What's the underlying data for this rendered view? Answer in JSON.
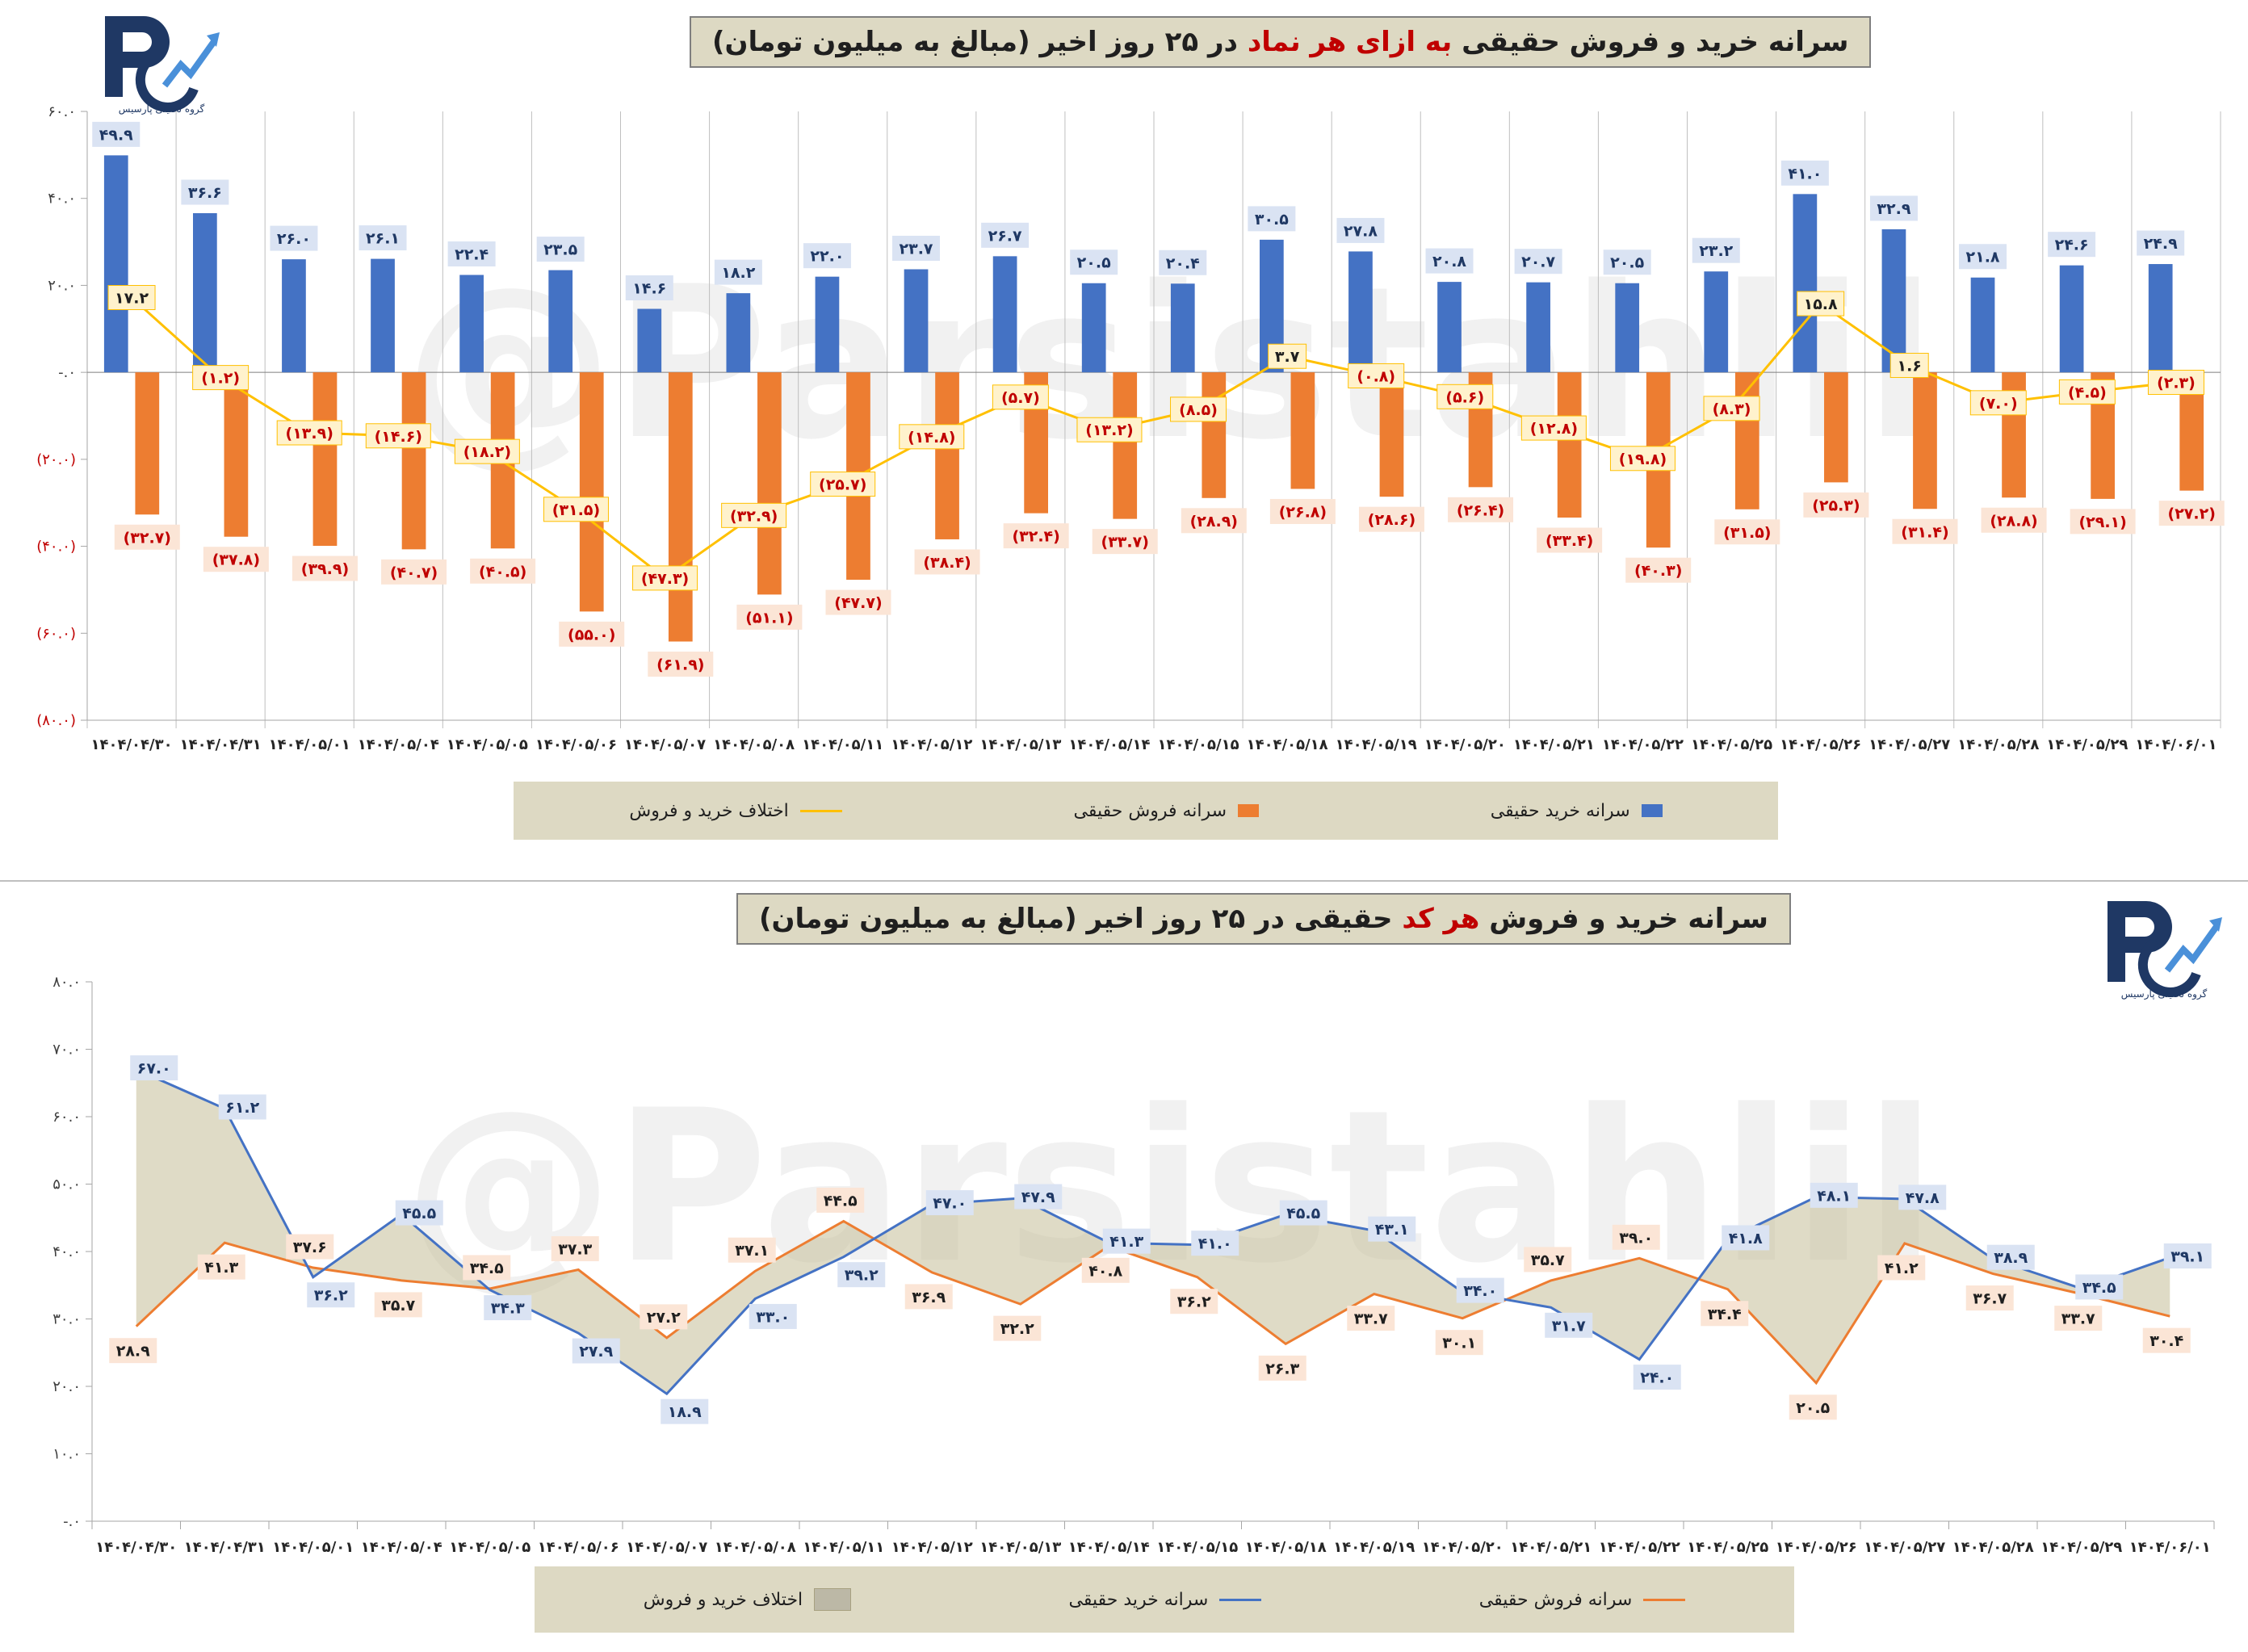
{
  "chart_data": [
    {
      "type": "bar",
      "title": {
        "pre": "سرانه خرید و فروش حقیقی",
        "highlight": "به ازای هر نماد",
        "post": "در ۲۵ روز اخیر (مبالغ به میلیون تومان)"
      },
      "categories": [
        "۱۴۰۴/۰۴/۳۰",
        "۱۴۰۴/۰۴/۳۱",
        "۱۴۰۴/۰۵/۰۱",
        "۱۴۰۴/۰۵/۰۴",
        "۱۴۰۴/۰۵/۰۵",
        "۱۴۰۴/۰۵/۰۶",
        "۱۴۰۴/۰۵/۰۷",
        "۱۴۰۴/۰۵/۰۸",
        "۱۴۰۴/۰۵/۱۱",
        "۱۴۰۴/۰۵/۱۲",
        "۱۴۰۴/۰۵/۱۳",
        "۱۴۰۴/۰۵/۱۴",
        "۱۴۰۴/۰۵/۱۵",
        "۱۴۰۴/۰۵/۱۸",
        "۱۴۰۴/۰۵/۱۹",
        "۱۴۰۴/۰۵/۲۰",
        "۱۴۰۴/۰۵/۲۱",
        "۱۴۰۴/۰۵/۲۲",
        "۱۴۰۴/۰۵/۲۵",
        "۱۴۰۴/۰۵/۲۶",
        "۱۴۰۴/۰۵/۲۷",
        "۱۴۰۴/۰۵/۲۸",
        "۱۴۰۴/۰۵/۲۹",
        "۱۴۰۴/۰۶/۰۱"
      ],
      "ylim": [
        -80,
        60
      ],
      "yticks": [
        60,
        40,
        20,
        0,
        -20,
        -40,
        -60,
        -80
      ],
      "ytick_labels": [
        "۶۰.۰",
        "۴۰.۰",
        "۲۰.۰",
        "-.۰",
        "(۲۰.۰)",
        "(۴۰.۰)",
        "(۶۰.۰)",
        "(۸۰.۰)"
      ],
      "legend_position": "bottom",
      "series": [
        {
          "name": "سرانه خرید حقیقی",
          "kind": "bar",
          "color": "#4472c4",
          "values": [
            49.9,
            36.6,
            26.0,
            26.1,
            22.4,
            23.5,
            14.6,
            18.2,
            22.0,
            23.7,
            26.7,
            20.5,
            20.4,
            30.5,
            27.8,
            20.8,
            20.7,
            20.5,
            23.2,
            41.0,
            32.9,
            21.8,
            24.6,
            24.9
          ],
          "labels": [
            "۴۹.۹",
            "۳۶.۶",
            "۲۶.۰",
            "۲۶.۱",
            "۲۲.۴",
            "۲۳.۵",
            "۱۴.۶",
            "۱۸.۲",
            "۲۲.۰",
            "۲۳.۷",
            "۲۶.۷",
            "۲۰.۵",
            "۲۰.۴",
            "۳۰.۵",
            "۲۷.۸",
            "۲۰.۸",
            "۲۰.۷",
            "۲۰.۵",
            "۲۳.۲",
            "۴۱.۰",
            "۳۲.۹",
            "۲۱.۸",
            "۲۴.۶",
            "۲۴.۹"
          ]
        },
        {
          "name": "سرانه فروش حقیقی",
          "kind": "bar",
          "color": "#ed7d31",
          "values": [
            -32.7,
            -37.8,
            -39.9,
            -40.7,
            -40.5,
            -55.0,
            -61.9,
            -51.1,
            -47.7,
            -38.4,
            -32.4,
            -33.7,
            -28.9,
            -26.8,
            -28.6,
            -26.4,
            -33.4,
            -40.3,
            -31.5,
            -25.3,
            -31.4,
            -28.8,
            -29.1,
            -27.2
          ],
          "labels": [
            "(۳۲.۷)",
            "(۳۷.۸)",
            "(۳۹.۹)",
            "(۴۰.۷)",
            "(۴۰.۵)",
            "(۵۵.۰)",
            "(۶۱.۹)",
            "(۵۱.۱)",
            "(۴۷.۷)",
            "(۳۸.۴)",
            "(۳۲.۴)",
            "(۳۳.۷)",
            "(۲۸.۹)",
            "(۲۶.۸)",
            "(۲۸.۶)",
            "(۲۶.۴)",
            "(۳۳.۴)",
            "(۴۰.۳)",
            "(۳۱.۵)",
            "(۲۵.۳)",
            "(۳۱.۴)",
            "(۲۸.۸)",
            "(۲۹.۱)",
            "(۲۷.۲)"
          ]
        },
        {
          "name": "اختلاف خرید و فروش",
          "kind": "line",
          "color": "#ffc000",
          "values": [
            17.2,
            -1.2,
            -13.9,
            -14.6,
            -18.2,
            -31.5,
            -47.3,
            -32.9,
            -25.7,
            -14.8,
            -5.7,
            -13.2,
            -8.5,
            3.7,
            -0.8,
            -5.6,
            -12.8,
            -19.8,
            -8.3,
            15.8,
            1.6,
            -7.0,
            -4.5,
            -2.3
          ],
          "labels": [
            "۱۷.۲",
            "(۱.۲)",
            "(۱۳.۹)",
            "(۱۴.۶)",
            "(۱۸.۲)",
            "(۳۱.۵)",
            "(۴۷.۳)",
            "(۳۲.۹)",
            "(۲۵.۷)",
            "(۱۴.۸)",
            "(۵.۷)",
            "(۱۳.۲)",
            "(۸.۵)",
            "۳.۷",
            "(۰.۸)",
            "(۵.۶)",
            "(۱۲.۸)",
            "(۱۹.۸)",
            "(۸.۳)",
            "۱۵.۸",
            "۱.۶",
            "(۷.۰)",
            "(۴.۵)",
            "(۲.۳)"
          ]
        }
      ]
    },
    {
      "type": "line",
      "title": {
        "pre": "سرانه خرید و فروش",
        "highlight": "هر کد",
        "post": "حقیقی در ۲۵ روز اخیر (مبالغ به میلیون تومان)"
      },
      "categories": [
        "۱۴۰۴/۰۴/۳۰",
        "۱۴۰۴/۰۴/۳۱",
        "۱۴۰۴/۰۵/۰۱",
        "۱۴۰۴/۰۵/۰۴",
        "۱۴۰۴/۰۵/۰۵",
        "۱۴۰۴/۰۵/۰۶",
        "۱۴۰۴/۰۵/۰۷",
        "۱۴۰۴/۰۵/۰۸",
        "۱۴۰۴/۰۵/۱۱",
        "۱۴۰۴/۰۵/۱۲",
        "۱۴۰۴/۰۵/۱۳",
        "۱۴۰۴/۰۵/۱۴",
        "۱۴۰۴/۰۵/۱۵",
        "۱۴۰۴/۰۵/۱۸",
        "۱۴۰۴/۰۵/۱۹",
        "۱۴۰۴/۰۵/۲۰",
        "۱۴۰۴/۰۵/۲۱",
        "۱۴۰۴/۰۵/۲۲",
        "۱۴۰۴/۰۵/۲۵",
        "۱۴۰۴/۰۵/۲۶",
        "۱۴۰۴/۰۵/۲۷",
        "۱۴۰۴/۰۵/۲۸",
        "۱۴۰۴/۰۵/۲۹",
        "۱۴۰۴/۰۶/۰۱"
      ],
      "ylim": [
        0,
        80
      ],
      "yticks": [
        80,
        70,
        60,
        50,
        40,
        30,
        20,
        10,
        0
      ],
      "ytick_labels": [
        "۸۰.۰",
        "۷۰.۰",
        "۶۰.۰",
        "۵۰.۰",
        "۴۰.۰",
        "۳۰.۰",
        "۲۰.۰",
        "۱۰.۰",
        "-.۰"
      ],
      "legend_position": "bottom",
      "series": [
        {
          "name": "اختلاف خرید و فروش",
          "kind": "area",
          "color": "#c4bd97"
        },
        {
          "name": "سرانه خرید حقیقی",
          "kind": "line",
          "color": "#4472c4",
          "values": [
            67.0,
            61.2,
            36.2,
            45.5,
            34.3,
            27.9,
            18.9,
            33.0,
            39.2,
            47.0,
            47.9,
            41.3,
            41.0,
            45.5,
            43.1,
            34.0,
            31.7,
            24.0,
            41.8,
            48.1,
            47.8,
            38.9,
            34.5,
            39.1
          ],
          "labels": [
            "۶۷.۰",
            "۶۱.۲",
            "۳۶.۲",
            "۴۵.۵",
            "۳۴.۳",
            "۲۷.۹",
            "۱۸.۹",
            "۳۳.۰",
            "۳۹.۲",
            "۴۷.۰",
            "۴۷.۹",
            "۴۱.۳",
            "۴۱.۰",
            "۴۵.۵",
            "۴۳.۱",
            "۳۴.۰",
            "۳۱.۷",
            "۲۴.۰",
            "۴۱.۸",
            "۴۸.۱",
            "۴۷.۸",
            "۳۸.۹",
            "۳۴.۵",
            "۳۹.۱"
          ]
        },
        {
          "name": "سرانه فروش حقیقی",
          "kind": "line",
          "color": "#ed7d31",
          "values": [
            28.9,
            41.3,
            37.6,
            35.7,
            34.5,
            37.3,
            27.2,
            37.1,
            44.5,
            36.9,
            32.2,
            40.8,
            36.2,
            26.3,
            33.7,
            30.1,
            35.7,
            39.0,
            34.4,
            20.5,
            41.2,
            36.7,
            33.7,
            30.4
          ],
          "labels": [
            "۲۸.۹",
            "۴۱.۳",
            "۳۷.۶",
            "۳۵.۷",
            "۳۴.۵",
            "۳۷.۳",
            "۲۷.۲",
            "۳۷.۱",
            "۴۴.۵",
            "۳۶.۹",
            "۳۲.۲",
            "۴۰.۸",
            "۳۶.۲",
            "۲۶.۳",
            "۳۳.۷",
            "۳۰.۱",
            "۳۵.۷",
            "۳۹.۰",
            "۳۴.۴",
            "۲۰.۵",
            "۴۱.۲",
            "۳۶.۷",
            "۳۳.۷",
            "۳۰.۴"
          ]
        }
      ]
    }
  ],
  "logo_text": "گروه تحلیلی پارسیس",
  "watermark": "@Parsistahlil"
}
